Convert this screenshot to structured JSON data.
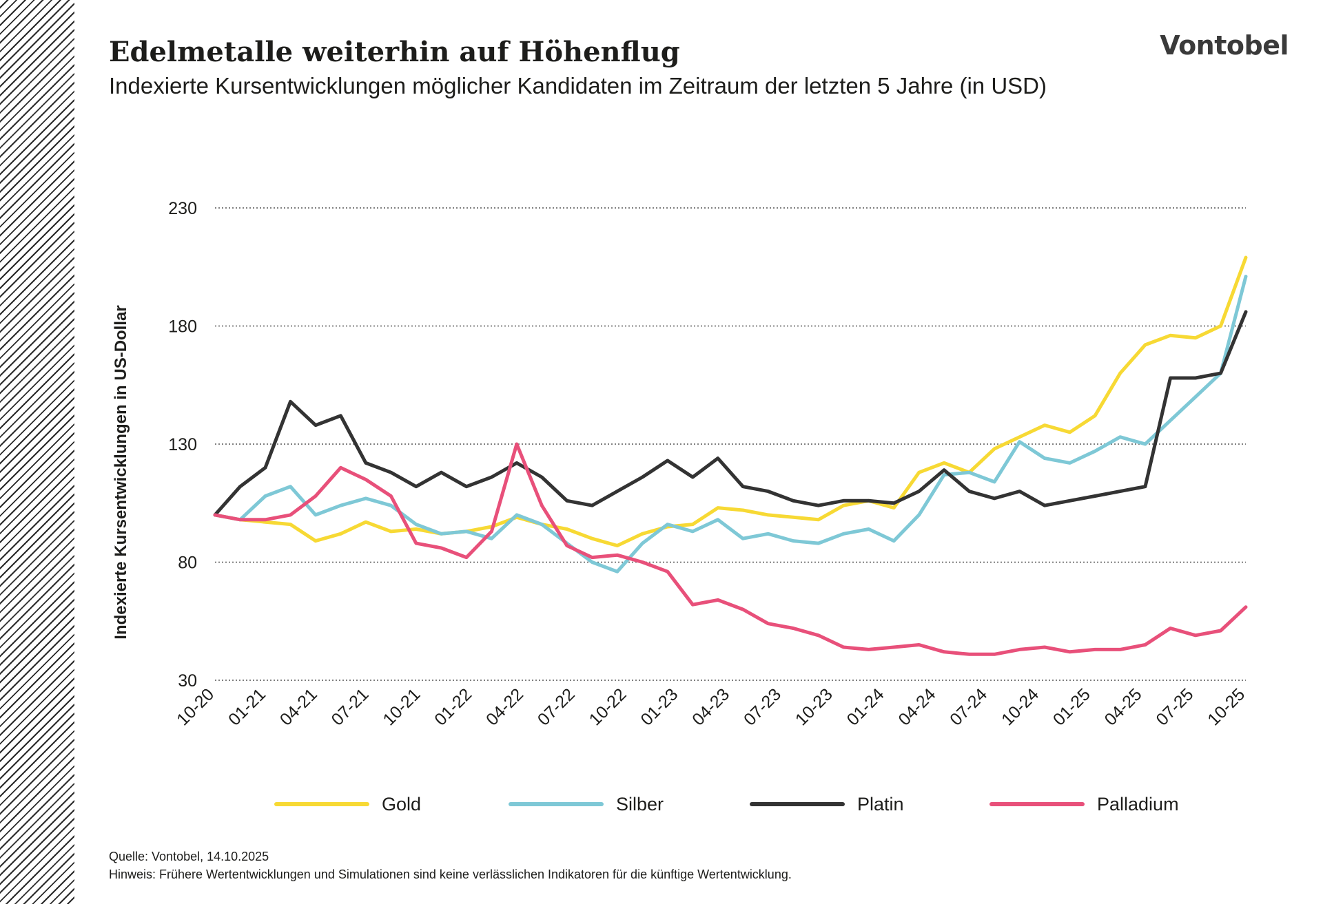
{
  "title": "Edelmetalle weiterhin auf Höhenflug",
  "subtitle": "Indexierte Kursentwicklungen möglicher Kandidaten im Zeitraum der letzten 5 Jahre (in USD)",
  "brand": "Vontobel",
  "footer": {
    "source": "Quelle: Vontobel, 14.10.2025",
    "note": "Hinweis:  Frühere Wertentwicklungen und Simulationen sind keine verlässlichen Indikatoren für die künftige Wertentwicklung."
  },
  "legend": [
    {
      "label": "Gold",
      "color": "#f7d934"
    },
    {
      "label": "Silber",
      "color": "#7ec8d6"
    },
    {
      "label": "Platin",
      "color": "#333333"
    },
    {
      "label": "Palladium",
      "color": "#e8507a"
    }
  ],
  "chart_data": {
    "type": "line",
    "ylabel": "Indexierte Kursentwicklungen in US-Dollar",
    "xlabel": "",
    "ylim": [
      30,
      230
    ],
    "yticks": [
      30,
      80,
      130,
      180,
      230
    ],
    "grid": true,
    "legend_position": "bottom",
    "x_tick_labels": [
      "10-20",
      "01-21",
      "04-21",
      "07-21",
      "10-21",
      "01-22",
      "04-22",
      "07-22",
      "10-22",
      "01-23",
      "04-23",
      "07-23",
      "10-23",
      "01-24",
      "04-24",
      "07-24",
      "10-24",
      "01-25",
      "04-25",
      "07-25",
      "10-25"
    ],
    "x": [
      "10-20",
      "12-20",
      "01-21",
      "02-21",
      "04-21",
      "05-21",
      "07-21",
      "08-21",
      "10-21",
      "11-21",
      "01-22",
      "02-22",
      "04-22",
      "05-22",
      "07-22",
      "08-22",
      "10-22",
      "11-22",
      "01-23",
      "02-23",
      "04-23",
      "05-23",
      "07-23",
      "08-23",
      "10-23",
      "11-23",
      "01-24",
      "02-24",
      "04-24",
      "05-24",
      "07-24",
      "08-24",
      "10-24",
      "11-24",
      "01-25",
      "02-25",
      "04-25",
      "05-25",
      "07-25",
      "08-25",
      "09-25",
      "10-25"
    ],
    "series": [
      {
        "name": "Gold",
        "color": "#f7d934",
        "values": [
          100,
          98,
          97,
          96,
          89,
          92,
          97,
          93,
          94,
          92,
          93,
          95,
          99,
          96,
          94,
          90,
          87,
          92,
          95,
          96,
          103,
          102,
          100,
          99,
          98,
          104,
          106,
          103,
          118,
          122,
          118,
          128,
          133,
          138,
          135,
          142,
          160,
          172,
          176,
          175,
          180,
          209
        ]
      },
      {
        "name": "Silber",
        "color": "#7ec8d6",
        "values": [
          100,
          98,
          108,
          112,
          100,
          104,
          107,
          104,
          96,
          92,
          93,
          90,
          100,
          96,
          88,
          80,
          76,
          88,
          96,
          93,
          98,
          90,
          92,
          89,
          88,
          92,
          94,
          89,
          100,
          117,
          118,
          114,
          131,
          124,
          122,
          127,
          133,
          130,
          140,
          150,
          160,
          201
        ]
      },
      {
        "name": "Platin",
        "color": "#333333",
        "values": [
          100,
          112,
          120,
          148,
          138,
          142,
          122,
          118,
          112,
          118,
          112,
          116,
          122,
          116,
          106,
          104,
          110,
          116,
          123,
          116,
          124,
          112,
          110,
          106,
          104,
          106,
          106,
          105,
          110,
          119,
          110,
          107,
          110,
          104,
          106,
          108,
          110,
          112,
          158,
          158,
          160,
          186
        ]
      },
      {
        "name": "Palladium",
        "color": "#e8507a",
        "values": [
          100,
          98,
          98,
          100,
          108,
          120,
          115,
          108,
          88,
          86,
          82,
          93,
          130,
          104,
          87,
          82,
          83,
          80,
          76,
          62,
          64,
          60,
          54,
          52,
          49,
          44,
          43,
          44,
          45,
          42,
          41,
          41,
          43,
          44,
          42,
          43,
          43,
          45,
          52,
          49,
          51,
          61
        ]
      }
    ]
  }
}
